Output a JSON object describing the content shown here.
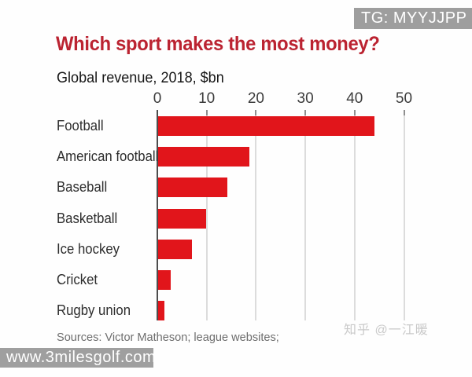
{
  "overlay": {
    "tg_badge": "TG: MYYJJPP",
    "zhihu_watermark": "知乎 @一江暖",
    "site_watermark": "www.3milesgolf.com"
  },
  "header": {
    "title": "Which sport makes the most money?",
    "subtitle": "Global revenue, 2018, $bn"
  },
  "footer": {
    "sources": "Sources: Victor Matheson; league websites;"
  },
  "colors": {
    "title_red": "#bb2331",
    "bar_red": "#e1151b",
    "badge_bg": "#9e9e9e",
    "watermark_box_bg": "#9f9f9f",
    "grid_gray": "#dcdcdc",
    "axis_gray": "#4d4d4d"
  },
  "chart_data": {
    "type": "bar",
    "orientation": "horizontal",
    "title": "Which sport makes the most money?",
    "subtitle": "Global revenue, 2018, $bn",
    "unit": "$bn",
    "categories": [
      "Football",
      "American football",
      "Baseball",
      "Basketball",
      "Ice hockey",
      "Cricket",
      "Rugby union"
    ],
    "values": [
      43.8,
      18.5,
      14,
      9.7,
      6.9,
      2.6,
      1.3
    ],
    "x_ticks": [
      0,
      10,
      20,
      30,
      40,
      50
    ],
    "xlim": [
      0,
      50
    ],
    "grid": true,
    "legend": false,
    "xlabel": "",
    "ylabel": ""
  }
}
